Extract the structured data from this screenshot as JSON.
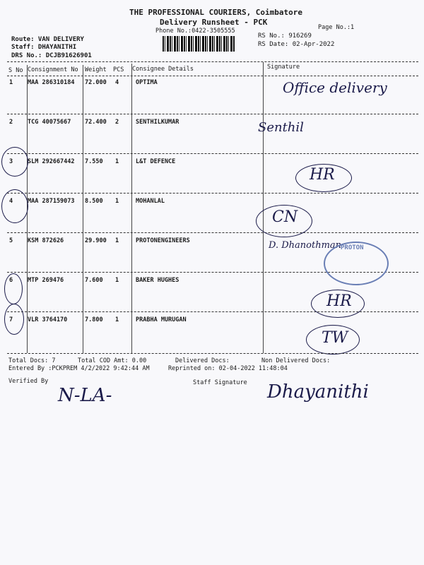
{
  "header": {
    "company": "THE PROFESSIONAL COURIERS, Coimbatore",
    "subtitle": "Delivery Runsheet - PCK",
    "phone": "Phone No.:0422-3505555",
    "page_no": "Page No.:1",
    "route": "Route: VAN DELIVERY",
    "staff": "Staff: DHAYANITHI",
    "drs_no": "DRS No.: DCJB91626901",
    "rs_no": "RS No.: 916269",
    "rs_date": "RS Date: 02-Apr-2022"
  },
  "table": {
    "columns": [
      "S No",
      "Consignment No",
      "Weight",
      "PCS",
      "Consignee Details",
      "Signature"
    ],
    "rows": [
      {
        "sno": "1",
        "consignment": "MAA 286310184",
        "weight": "72.000",
        "pcs": "4",
        "consignee": "OPTIMA",
        "signature": "Office delivery"
      },
      {
        "sno": "2",
        "consignment": "TCG 40075667",
        "weight": "72.400",
        "pcs": "2",
        "consignee": "SENTHILKUMAR",
        "signature": "Senthil"
      },
      {
        "sno": "3",
        "consignment": "SLM 292667442",
        "weight": "7.550",
        "pcs": "1",
        "consignee": "L&T DEFENCE",
        "signature": "HR"
      },
      {
        "sno": "4",
        "consignment": "MAA 287159073",
        "weight": "8.500",
        "pcs": "1",
        "consignee": "MOHANLAL",
        "signature": "CN"
      },
      {
        "sno": "5",
        "consignment": "KSM 872626",
        "weight": "29.900",
        "pcs": "1",
        "consignee": "PROTONENGINEERS",
        "signature": "D. Dhanothman"
      },
      {
        "sno": "6",
        "consignment": "MTP 269476",
        "weight": "7.600",
        "pcs": "1",
        "consignee": "BAKER HUGHES",
        "signature": "HR"
      },
      {
        "sno": "7",
        "consignment": "VLR 3764170",
        "weight": "7.800",
        "pcs": "1",
        "consignee": "PRABHA MURUGAN",
        "signature": "TW"
      }
    ]
  },
  "stamp": "PROTON",
  "footer": {
    "total_docs": "Total Docs:  7",
    "total_cod": "Total COD Amt:    0.00",
    "delivered": "Delivered Docs:",
    "non_delivered": "Non Delivered Docs:",
    "entered_by": "Entered By :PCKPREM 4/2/2022 9:42:44 AM",
    "reprinted": "Reprinted on: 02-04-2022 11:48:04",
    "verified_by": "Verified By",
    "staff_signature": "Staff Signature",
    "verified_sign": "N-LA-",
    "staff_sign": "Dhayanithi"
  }
}
